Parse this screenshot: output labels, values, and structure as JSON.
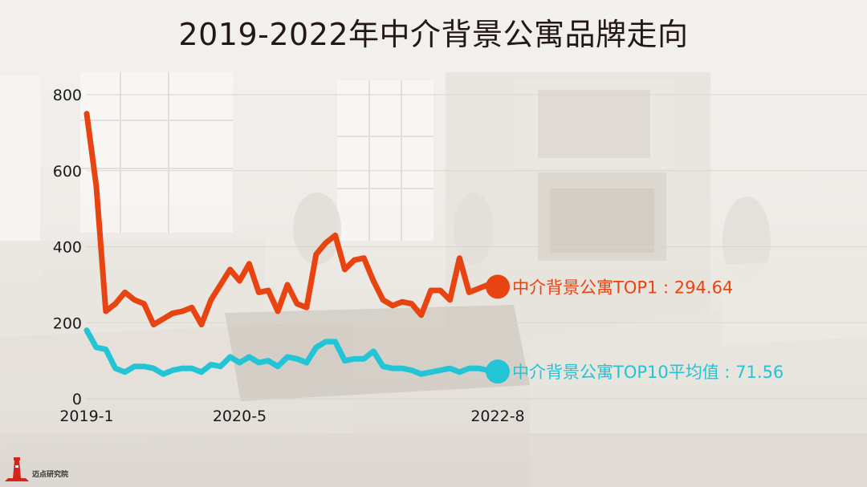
{
  "title": "2019-2022年中介背景公寓品牌走向",
  "colors": {
    "top1": "#e84412",
    "top10": "#22c4d6"
  },
  "logo": {
    "text": "迈点研究院",
    "icon": "lighthouse-logo-icon"
  },
  "chart_data": {
    "type": "line",
    "title": "2019-2022年中介背景公寓品牌走向",
    "xlabel": "",
    "ylabel": "",
    "ylim": [
      0,
      800
    ],
    "yticks": [
      "0",
      "200",
      "400",
      "600",
      "800"
    ],
    "x_tick_labels": [
      "2019-1",
      "2020-5",
      "2022-8"
    ],
    "x_tick_index": [
      0,
      16,
      43
    ],
    "grid": true,
    "legend": "end-of-line labels",
    "series": [
      {
        "name": "中介背景公寓TOP1",
        "end_label": "中介背景公寓TOP1 : 294.64",
        "color": "#e84412",
        "values": [
          750,
          560,
          230,
          250,
          280,
          260,
          250,
          195,
          210,
          225,
          230,
          240,
          195,
          260,
          300,
          340,
          310,
          355,
          280,
          285,
          230,
          300,
          250,
          240,
          380,
          410,
          430,
          340,
          365,
          370,
          310,
          260,
          245,
          255,
          250,
          220,
          285,
          285,
          260,
          370,
          280,
          290,
          300,
          294.64
        ]
      },
      {
        "name": "中介背景公寓TOP10平均值",
        "end_label": "中介背景公寓TOP10平均值 : 71.56",
        "color": "#22c4d6",
        "values": [
          180,
          135,
          130,
          80,
          70,
          85,
          85,
          80,
          65,
          75,
          80,
          80,
          70,
          90,
          85,
          110,
          95,
          110,
          95,
          100,
          85,
          110,
          105,
          95,
          135,
          150,
          150,
          100,
          105,
          105,
          125,
          85,
          80,
          80,
          75,
          65,
          70,
          75,
          80,
          70,
          80,
          80,
          75,
          71.56
        ]
      }
    ]
  }
}
